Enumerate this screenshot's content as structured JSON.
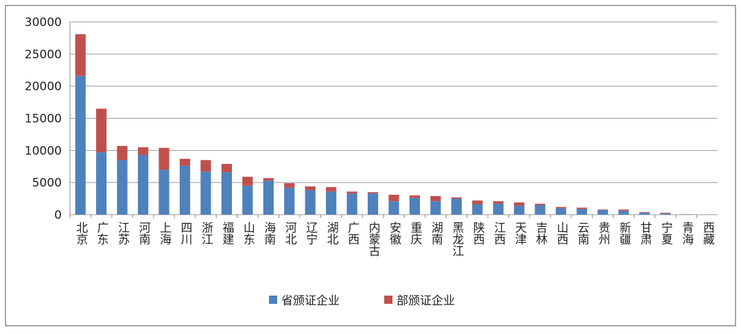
{
  "chart_data": {
    "type": "stacked-bar",
    "categories": [
      "北京",
      "广东",
      "江苏",
      "河南",
      "上海",
      "四川",
      "浙江",
      "福建",
      "山东",
      "海南",
      "河北",
      "辽宁",
      "湖北",
      "广西",
      "内蒙古",
      "安徽",
      "重庆",
      "湖南",
      "黑龙江",
      "陕西",
      "江西",
      "天津",
      "吉林",
      "山西",
      "云南",
      "贵州",
      "新疆",
      "甘肃",
      "宁夏",
      "青海",
      "西藏"
    ],
    "series": [
      {
        "name": "省颁证企业",
        "color": "#4f81bd",
        "values": [
          21600,
          9700,
          8500,
          9300,
          7000,
          7600,
          6700,
          6600,
          4500,
          5300,
          4200,
          3800,
          3600,
          3300,
          3300,
          2100,
          2600,
          2100,
          2500,
          1600,
          1700,
          1400,
          1500,
          1000,
          900,
          700,
          600,
          300,
          200,
          50,
          20
        ]
      },
      {
        "name": "部颁证企业",
        "color": "#c0504d",
        "values": [
          6500,
          6800,
          2200,
          1200,
          3400,
          1100,
          1800,
          1300,
          1400,
          400,
          700,
          600,
          700,
          300,
          200,
          1000,
          400,
          800,
          200,
          600,
          400,
          500,
          200,
          200,
          200,
          100,
          200,
          100,
          100,
          20,
          10
        ]
      }
    ],
    "ylim": [
      0,
      30000
    ],
    "yticks": [
      0,
      5000,
      10000,
      15000,
      20000,
      25000,
      30000
    ],
    "grid": true,
    "legend": "bottom"
  }
}
